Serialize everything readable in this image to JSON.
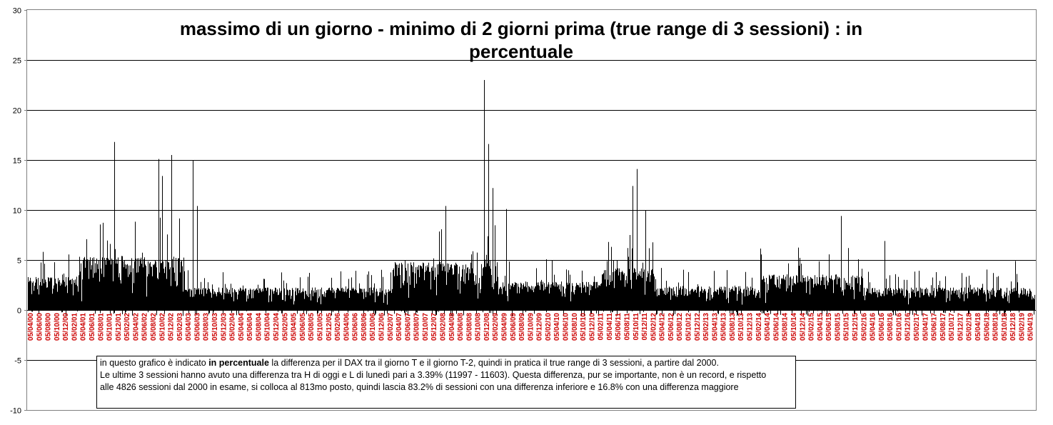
{
  "chart_data": {
    "type": "bar",
    "title": "massimo di un giorno - minimo di 2 giorni prima (true range di 3 sessioni) : in percentuale",
    "xlabel": "",
    "ylabel": "",
    "ylim": [
      -10,
      30
    ],
    "yticks": [
      "30",
      "25",
      "20",
      "15",
      "10",
      "5",
      "0",
      "-5",
      "-10"
    ],
    "grid": true,
    "legend": "none",
    "bar_color": "#000000",
    "x_label_color": "#cc0000",
    "n_sessions": 4826,
    "x_tick_labels": [
      "05/04/00",
      "05/06/00",
      "05/08/00",
      "05/10/00",
      "05/12/00",
      "05/02/01",
      "05/04/01",
      "05/06/01",
      "05/08/01",
      "05/10/01",
      "05/12/01",
      "05/02/02",
      "05/04/02",
      "05/06/02",
      "05/08/02",
      "05/10/02",
      "05/12/02",
      "05/02/03",
      "05/04/03",
      "05/06/03",
      "05/08/03",
      "05/10/03",
      "05/12/03",
      "05/02/04",
      "05/04/04",
      "05/06/04",
      "05/08/04",
      "05/10/04",
      "05/12/04",
      "05/02/05",
      "05/04/05",
      "05/06/05",
      "05/08/05",
      "05/10/05",
      "05/12/05",
      "05/02/06",
      "05/04/06",
      "05/06/06",
      "05/08/06",
      "05/10/06",
      "05/12/06",
      "05/02/07",
      "05/04/07",
      "05/06/07",
      "05/08/07",
      "05/10/07",
      "05/12/07",
      "05/02/08",
      "05/04/08",
      "05/06/08",
      "05/08/08",
      "05/10/08",
      "05/12/08",
      "05/02/09",
      "05/04/09",
      "05/06/09",
      "05/08/09",
      "05/10/09",
      "05/12/09",
      "05/02/10",
      "05/04/10",
      "05/06/10",
      "05/08/10",
      "05/10/10",
      "05/12/10",
      "05/02/11",
      "05/04/11",
      "05/06/11",
      "05/08/11",
      "05/10/11",
      "05/12/11",
      "05/02/12",
      "05/04/12",
      "05/06/12",
      "05/08/12",
      "05/10/12",
      "05/12/12",
      "05/02/13",
      "05/04/13",
      "05/06/13",
      "05/08/13",
      "05/10/13",
      "05/12/13",
      "05/02/14",
      "05/04/14",
      "05/06/14",
      "05/08/14",
      "05/10/14",
      "05/12/14",
      "05/02/15",
      "05/04/15",
      "05/06/15",
      "05/08/15",
      "05/10/15",
      "05/12/15",
      "05/02/16",
      "05/04/16",
      "05/06/16",
      "05/08/16",
      "05/10/16",
      "05/12/16",
      "05/02/17",
      "05/04/17",
      "05/06/17",
      "05/08/17",
      "05/10/17",
      "05/12/17",
      "05/02/18",
      "05/04/18",
      "05/06/18",
      "05/08/18",
      "05/10/18",
      "05/12/18",
      "05/02/19",
      "05/04/19"
    ],
    "regime_levels": [
      {
        "from": "2000",
        "to": "2001",
        "typical": 2.2
      },
      {
        "from": "2001",
        "to": "2003",
        "typical": 3.6
      },
      {
        "from": "2003",
        "to": "2007",
        "typical": 1.5
      },
      {
        "from": "2007",
        "to": "2009",
        "typical": 3.2
      },
      {
        "from": "2009",
        "to": "2011",
        "typical": 1.9
      },
      {
        "from": "2011",
        "to": "2012",
        "typical": 2.8
      },
      {
        "from": "2012",
        "to": "2014",
        "typical": 1.6
      },
      {
        "from": "2014",
        "to": "2016",
        "typical": 2.4
      },
      {
        "from": "2016",
        "to": "2019",
        "typical": 1.5
      }
    ],
    "notable_values": [
      {
        "date": "2001-09",
        "value": 16.8
      },
      {
        "date": "2002-07",
        "value": 15.1
      },
      {
        "date": "2002-08",
        "value": 13.4
      },
      {
        "date": "2002-10",
        "value": 15.5
      },
      {
        "date": "2003-03",
        "value": 15.0
      },
      {
        "date": "2003-04",
        "value": 10.4
      },
      {
        "date": "2008-01",
        "value": 10.4
      },
      {
        "date": "2008-10",
        "value": 24.2
      },
      {
        "date": "2008-10",
        "value": 23.0
      },
      {
        "date": "2008-11",
        "value": 16.6
      },
      {
        "date": "2008-12",
        "value": 12.2
      },
      {
        "date": "2009-03",
        "value": 10.1
      },
      {
        "date": "2011-08",
        "value": 11.4
      },
      {
        "date": "2011-08",
        "value": 12.4
      },
      {
        "date": "2011-09",
        "value": 14.1
      },
      {
        "date": "2011-11",
        "value": 10.0
      },
      {
        "date": "2015-08",
        "value": 9.4
      },
      {
        "date": "2016-06",
        "value": 6.9
      },
      {
        "date": "2018-12",
        "value": 4.9
      }
    ]
  },
  "note": {
    "line1_pre": "in questo grafico è indicato ",
    "line1_bold": "in percentuale",
    "line1_post": " la differenza per il DAX tra il giorno T e il giorno T-2, quindi in pratica il true range di 3 sessioni, a partire dal 2000.",
    "line2": "Le ultime 3 sessioni hanno avuto una differenza tra H di oggi e L di lunedì pari a 3.39% (11997 - 11603).  Questa differenza, pur se importante, non è un record, e rispetto",
    "line3": "alle 4826 sessioni dal 2000 in esame, si colloca al 813mo posto, quindi lascia 83.2% di sessioni con una differenza inferiore e 16.8% con una differenza maggiore"
  }
}
